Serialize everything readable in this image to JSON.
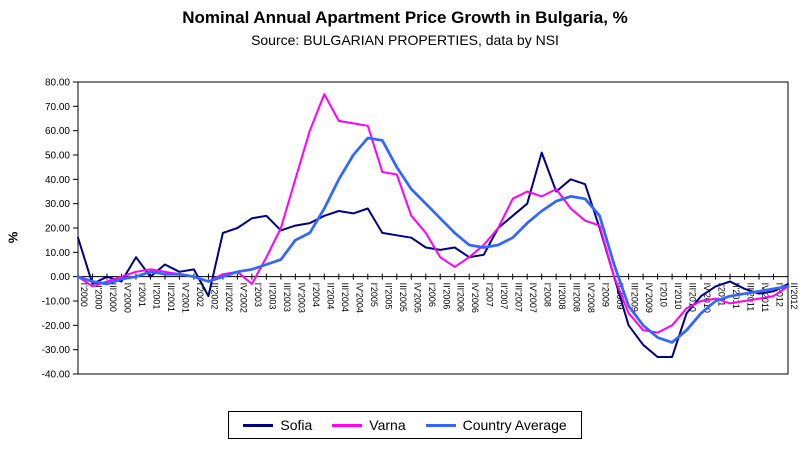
{
  "chart_data": {
    "type": "line",
    "title": "Nominal Annual Apartment Price Growth in Bulgaria, %",
    "subtitle": "Source: BULGARIAN PROPERTIES, data by NSI",
    "ylabel": "%",
    "ylim": [
      -40,
      80
    ],
    "ytick_step": 10,
    "ytick_decimals": 2,
    "grid": false,
    "legend_position": "bottom",
    "categories": [
      "I'2000",
      "II'2000",
      "III'2000",
      "IV'2000",
      "I'2001",
      "II'2001",
      "III'2001",
      "IV'2001",
      "I'2002",
      "II'2002",
      "III'2002",
      "IV'2002",
      "I'2003",
      "II'2003",
      "III'2003",
      "IV'2003",
      "I'2004",
      "II'2004",
      "III'2004",
      "IV'2004",
      "I'2005",
      "II'2005",
      "III'2005",
      "IV'2005",
      "I'2006",
      "II'2006",
      "III'2006",
      "IV'2006",
      "I'2007",
      "II'2007",
      "III'2007",
      "IV'2007",
      "I'2008",
      "II'2008",
      "III'2008",
      "IV'2008",
      "I'2009",
      "II'2009",
      "III'2009",
      "IV'2009",
      "I'2010",
      "II'2010",
      "III'2010",
      "IV'2010",
      "I'2011",
      "II'2011",
      "III'2011",
      "IV'2011",
      "I'2012",
      "II'2012"
    ],
    "series": [
      {
        "name": "Sofia",
        "color": "#000080",
        "width": 2,
        "values": [
          16,
          -3,
          0,
          -2,
          8,
          0,
          5,
          2,
          3,
          -8,
          18,
          20,
          24,
          25,
          19,
          21,
          22,
          25,
          27,
          26,
          28,
          18,
          17,
          16,
          12,
          11,
          12,
          8,
          9,
          20,
          25,
          30,
          51,
          35,
          40,
          38,
          20,
          0,
          -20,
          -28,
          -33,
          -33,
          -15,
          -8,
          -4,
          -2,
          -5,
          -7,
          -6,
          -3
        ]
      },
      {
        "name": "Varna",
        "color": "#FF00FF",
        "width": 2,
        "values": [
          0,
          -4,
          -2,
          0,
          2,
          3,
          2,
          1,
          0,
          -2,
          1,
          2,
          -3,
          8,
          20,
          40,
          60,
          75,
          64,
          63,
          62,
          43,
          42,
          25,
          18,
          8,
          4,
          8,
          13,
          20,
          32,
          35,
          33,
          36,
          28,
          23,
          21,
          0,
          -15,
          -22,
          -23,
          -20,
          -13,
          -10,
          -9,
          -11,
          -10,
          -9,
          -8,
          -4
        ]
      },
      {
        "name": "Country Average",
        "color": "#3366FF",
        "width": 2.75,
        "values": [
          0,
          -2,
          -3,
          -1,
          0,
          2,
          1,
          1,
          0,
          -2,
          0,
          2,
          3,
          5,
          7,
          15,
          18,
          28,
          40,
          50,
          57,
          56,
          45,
          36,
          30,
          24,
          18,
          13,
          12,
          13,
          16,
          22,
          27,
          31,
          33,
          32,
          25,
          5,
          -12,
          -20,
          -25,
          -27,
          -22,
          -15,
          -10,
          -8,
          -7,
          -6,
          -5,
          -4
        ]
      }
    ]
  }
}
